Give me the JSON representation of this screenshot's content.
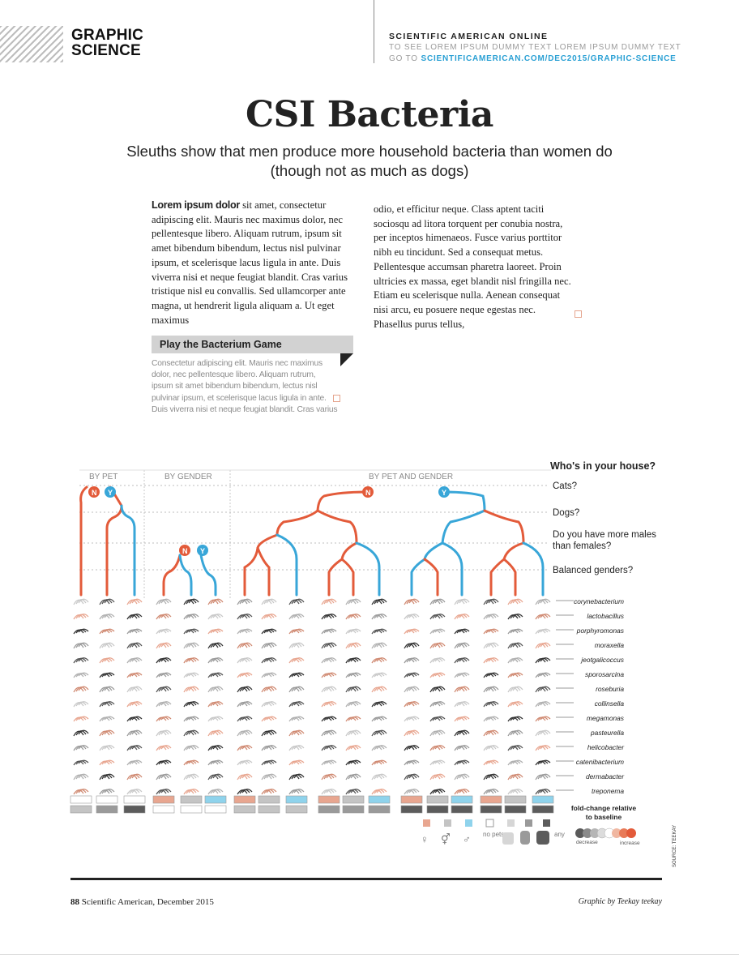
{
  "header": {
    "section": [
      "GRAPHIC",
      "SCIENCE"
    ],
    "online": "SCIENTIFIC AMERICAN ONLINE",
    "line2": "TO SEE LOREM IPSUM DUMMY TEXT LOREM IPSUM DUMMY TEXT",
    "goto": "GO TO",
    "url": "SCIENTIFICAMERICAN.COM/DEC2015/GRAPHIC-SCIENCE"
  },
  "title": "CSI Bacteria",
  "subtitle": "Sleuths show that men produce more household bacteria than women do (though not as much as dogs)",
  "body": {
    "lead": "Lorem ipsum dolor",
    "col1": " sit amet, consectetur adipiscing elit. Mauris nec maximus dolor, nec pellentesque libero. Aliquam rutrum, ipsum sit amet bibendum bibendum, lectus nisl pulvinar ipsum, et scelerisque lacus ligula in ante. Duis viverra nisi et neque feugiat blandit. Cras varius tristique nisl eu convallis. Sed ullamcorper ante magna, ut hendrerit ligula aliquam a. Ut eget maximus",
    "col2": "odio, et efficitur neque. Class aptent taciti sociosqu ad litora torquent per conubia nostra, per inceptos himenaeos. Fusce varius porttitor nibh eu tincidunt. Sed a consequat metus. Pellentesque accumsan pharetra laoreet. Proin ultricies ex massa, eget blandit nisl fringilla nec. Etiam eu scelerisque nulla. Aenean consequat nisi arcu, eu posuere neque egestas nec. Phasellus purus tellus,"
  },
  "sidebar": {
    "title": "Play the Bacterium Game",
    "text": "Consectetur adipiscing elit. Mauris nec maximus dolor, nec pellentesque libero. Aliquam rutrum, ipsum sit amet bibendum bibendum, lectus nisl pulvinar ipsum, et scelerisque lacus ligula in ante. Duis viverra nisi et neque feugiat blandit. Cras varius"
  },
  "graphic": {
    "group_labels": [
      "BY PET",
      "BY GENDER",
      "BY PET AND GENDER"
    ],
    "question_head": "Who's in your house?",
    "questions": [
      "Cats?",
      "Dogs?",
      "Do you have more males than females?",
      "Balanced genders?"
    ],
    "node_no": "N",
    "node_yes": "Y",
    "bacteria": [
      "corynebacterium",
      "lactobacillus",
      "porphyromonas",
      "moraxella",
      "jeotgalicoccus",
      "sporosarcina",
      "roseburia",
      "collinsella",
      "megamonas",
      "pasteurella",
      "helicobacter",
      "catenibacterium",
      "dermabacter",
      "treponema"
    ],
    "legend_fold_title": "fold-change relative to baseline",
    "legend_decrease": "decrease",
    "legend_increase": "increase",
    "legend_categories": [
      "♀",
      "⚥",
      "♂",
      "no pets",
      "",
      "",
      "",
      "any"
    ],
    "source": "SOURCE: TEEKAY",
    "colors": {
      "no": "#e35b3a",
      "yes": "#38a6d8",
      "female": "#e8a690",
      "mixed": "#c4c4c4",
      "male": "#8fd3ec",
      "nopets": "#ffffff",
      "grey_mid": "#9a9a9a",
      "grey_dark": "#5c5c5c"
    }
  },
  "footer": {
    "folio_num": "88",
    "folio_text": "Scientific American, December 2015",
    "credit": "Graphic by Teekay teekay"
  }
}
